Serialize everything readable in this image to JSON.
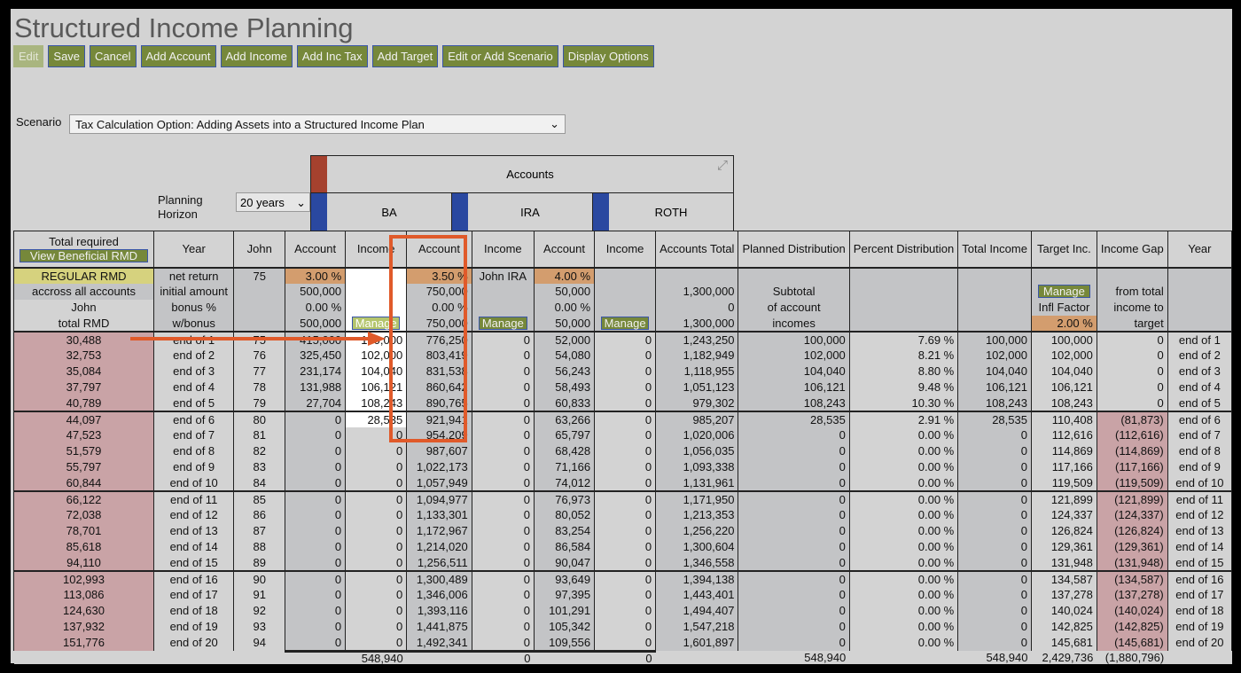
{
  "title": "Structured Income Planning",
  "toolbar": [
    "Edit",
    "Save",
    "Cancel",
    "Add Account",
    "Add Income",
    "Add Inc Tax",
    "Add Target",
    "Edit or Add Scenario",
    "Display Options"
  ],
  "scenario": {
    "label": "Scenario",
    "value": "Tax Calculation Option: Adding Assets into a Structured Income Plan"
  },
  "planning_horizon": {
    "label1": "Planning",
    "label2": "Horizon",
    "value": "20 years"
  },
  "accounts_header": "Accounts",
  "account_names": [
    "BA",
    "IRA",
    "ROTH"
  ],
  "colors": {
    "button": "#76883a",
    "highlight": "#e05a2a",
    "negative": "#c9a3a6",
    "rate": "#d39d6e"
  },
  "header": {
    "total_required": "Total required",
    "view_rmd": "View Beneficial RMD",
    "columns": [
      "Year",
      "John",
      "Account",
      "Income",
      "Account",
      "Income",
      "Account",
      "Income",
      "Accounts Total",
      "Planned Distribution",
      "Percent Distribution",
      "Total Income",
      "Target Inc.",
      "Income Gap",
      "Year"
    ]
  },
  "params": [
    [
      "REGULAR RMD",
      "net return",
      "75",
      "3.00 %",
      "",
      "3.50 %",
      "John IRA",
      "4.00 %",
      "",
      "",
      "",
      "",
      "",
      "",
      "",
      ""
    ],
    [
      "accross all accounts",
      "initial amount",
      "",
      "500,000",
      "",
      "750,000",
      "",
      "50,000",
      "",
      "1,300,000",
      "Subtotal",
      "",
      "",
      "Manage",
      "from total",
      ""
    ],
    [
      "John",
      "bonus %",
      "",
      "0.00 %",
      "",
      "0.00 %",
      "",
      "0.00 %",
      "",
      "0",
      "of account",
      "",
      "",
      "Infl Factor",
      "income to",
      ""
    ],
    [
      "total RMD",
      "w/bonus",
      "",
      "500,000",
      "Manage",
      "750,000",
      "Manage",
      "50,000",
      "Manage",
      "1,300,000",
      "incomes",
      "",
      "",
      "2.00 %",
      "target",
      ""
    ]
  ],
  "rows": [
    [
      "30,488",
      "end of 1",
      "75",
      "415,000",
      "100,000",
      "776,250",
      "0",
      "52,000",
      "0",
      "1,243,250",
      "100,000",
      "7.69 %",
      "100,000",
      "100,000",
      "0",
      "end of 1"
    ],
    [
      "32,753",
      "end of 2",
      "76",
      "325,450",
      "102,000",
      "803,419",
      "0",
      "54,080",
      "0",
      "1,182,949",
      "102,000",
      "8.21 %",
      "102,000",
      "102,000",
      "0",
      "end of 2"
    ],
    [
      "35,084",
      "end of 3",
      "77",
      "231,174",
      "104,040",
      "831,538",
      "0",
      "56,243",
      "0",
      "1,118,955",
      "104,040",
      "8.80 %",
      "104,040",
      "104,040",
      "0",
      "end of 3"
    ],
    [
      "37,797",
      "end of 4",
      "78",
      "131,988",
      "106,121",
      "860,642",
      "0",
      "58,493",
      "0",
      "1,051,123",
      "106,121",
      "9.48 %",
      "106,121",
      "106,121",
      "0",
      "end of 4"
    ],
    [
      "40,789",
      "end of 5",
      "79",
      "27,704",
      "108,243",
      "890,765",
      "0",
      "60,833",
      "0",
      "979,302",
      "108,243",
      "10.30 %",
      "108,243",
      "108,243",
      "0",
      "end of 5"
    ],
    [
      "44,097",
      "end of 6",
      "80",
      "0",
      "28,535",
      "921,941",
      "0",
      "63,266",
      "0",
      "985,207",
      "28,535",
      "2.91 %",
      "28,535",
      "110,408",
      "(81,873)",
      "end of 6"
    ],
    [
      "47,523",
      "end of 7",
      "81",
      "0",
      "0",
      "954,209",
      "0",
      "65,797",
      "0",
      "1,020,006",
      "0",
      "0.00 %",
      "0",
      "112,616",
      "(112,616)",
      "end of 7"
    ],
    [
      "51,579",
      "end of 8",
      "82",
      "0",
      "0",
      "987,607",
      "0",
      "68,428",
      "0",
      "1,056,035",
      "0",
      "0.00 %",
      "0",
      "114,869",
      "(114,869)",
      "end of 8"
    ],
    [
      "55,797",
      "end of 9",
      "83",
      "0",
      "0",
      "1,022,173",
      "0",
      "71,166",
      "0",
      "1,093,338",
      "0",
      "0.00 %",
      "0",
      "117,166",
      "(117,166)",
      "end of 9"
    ],
    [
      "60,844",
      "end of 10",
      "84",
      "0",
      "0",
      "1,057,949",
      "0",
      "74,012",
      "0",
      "1,131,961",
      "0",
      "0.00 %",
      "0",
      "119,509",
      "(119,509)",
      "end of 10"
    ],
    [
      "66,122",
      "end of 11",
      "85",
      "0",
      "0",
      "1,094,977",
      "0",
      "76,973",
      "0",
      "1,171,950",
      "0",
      "0.00 %",
      "0",
      "121,899",
      "(121,899)",
      "end of 11"
    ],
    [
      "72,038",
      "end of 12",
      "86",
      "0",
      "0",
      "1,133,301",
      "0",
      "80,052",
      "0",
      "1,213,353",
      "0",
      "0.00 %",
      "0",
      "124,337",
      "(124,337)",
      "end of 12"
    ],
    [
      "78,701",
      "end of 13",
      "87",
      "0",
      "0",
      "1,172,967",
      "0",
      "83,254",
      "0",
      "1,256,220",
      "0",
      "0.00 %",
      "0",
      "126,824",
      "(126,824)",
      "end of 13"
    ],
    [
      "85,618",
      "end of 14",
      "88",
      "0",
      "0",
      "1,214,020",
      "0",
      "86,584",
      "0",
      "1,300,604",
      "0",
      "0.00 %",
      "0",
      "129,361",
      "(129,361)",
      "end of 14"
    ],
    [
      "94,110",
      "end of 15",
      "89",
      "0",
      "0",
      "1,256,511",
      "0",
      "90,047",
      "0",
      "1,346,558",
      "0",
      "0.00 %",
      "0",
      "131,948",
      "(131,948)",
      "end of 15"
    ],
    [
      "102,993",
      "end of 16",
      "90",
      "0",
      "0",
      "1,300,489",
      "0",
      "93,649",
      "0",
      "1,394,138",
      "0",
      "0.00 %",
      "0",
      "134,587",
      "(134,587)",
      "end of 16"
    ],
    [
      "113,086",
      "end of 17",
      "91",
      "0",
      "0",
      "1,346,006",
      "0",
      "97,395",
      "0",
      "1,443,401",
      "0",
      "0.00 %",
      "0",
      "137,278",
      "(137,278)",
      "end of 17"
    ],
    [
      "124,630",
      "end of 18",
      "92",
      "0",
      "0",
      "1,393,116",
      "0",
      "101,291",
      "0",
      "1,494,407",
      "0",
      "0.00 %",
      "0",
      "140,024",
      "(140,024)",
      "end of 18"
    ],
    [
      "137,932",
      "end of 19",
      "93",
      "0",
      "0",
      "1,441,875",
      "0",
      "105,342",
      "0",
      "1,547,218",
      "0",
      "0.00 %",
      "0",
      "142,825",
      "(142,825)",
      "end of 19"
    ],
    [
      "151,776",
      "end of 20",
      "94",
      "0",
      "0",
      "1,492,341",
      "0",
      "109,556",
      "0",
      "1,601,897",
      "0",
      "0.00 %",
      "0",
      "145,681",
      "(145,681)",
      "end of 20"
    ]
  ],
  "totals": [
    "",
    "",
    "",
    "",
    "548,940",
    "",
    "0",
    "",
    "0",
    "",
    "548,940",
    "",
    "548,940",
    "2,429,736",
    "(1,880,796)",
    ""
  ]
}
